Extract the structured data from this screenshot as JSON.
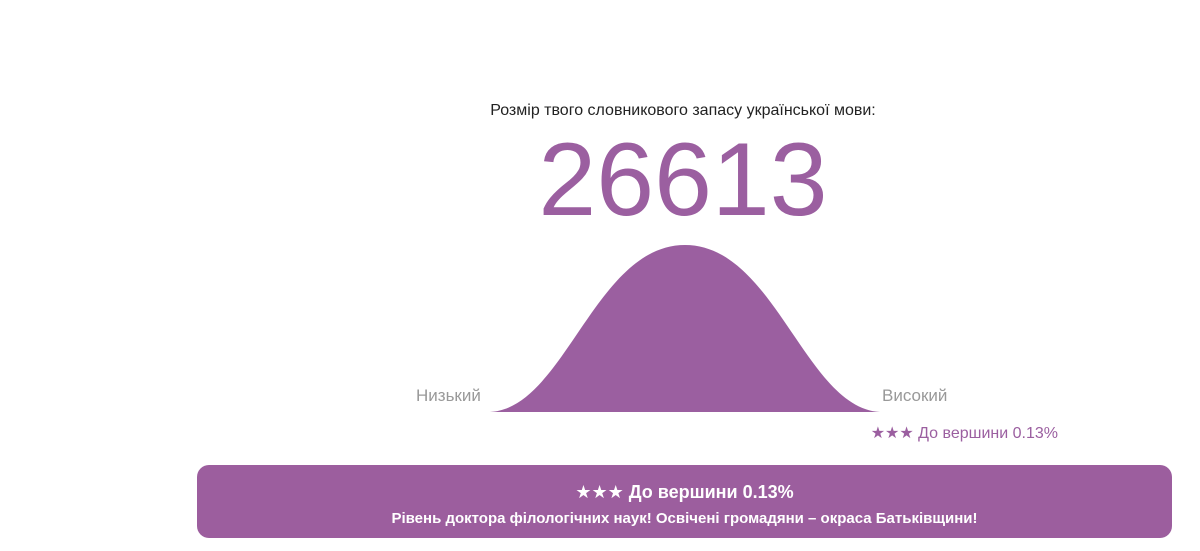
{
  "result": {
    "caption": "Розмір твого словникового запасу української мови:",
    "score": "26613",
    "low_label": "Низький",
    "high_label": "Високий",
    "rank_note": "★★★ До вершини 0.13%"
  },
  "banner": {
    "title": "★★★ До вершини 0.13%",
    "message": "Рівень доктора філологічних наук! Освічені громадяни – окраса Батьківщини!"
  }
}
